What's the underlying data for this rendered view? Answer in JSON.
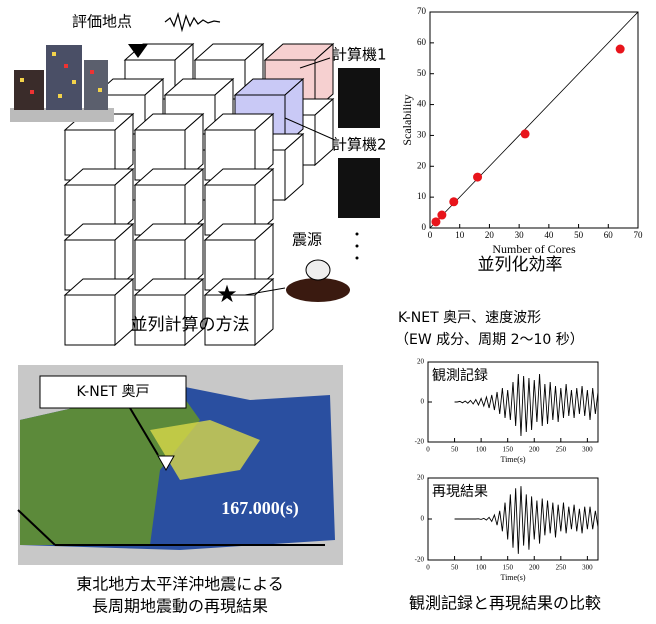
{
  "diagram": {
    "site": "評価地点",
    "computer1": "計算機1",
    "computer2": "計算機2",
    "source": "震源",
    "caption": "並列計算の方法"
  },
  "map": {
    "station": "K-NET 奥戸",
    "time": "167.000(s)",
    "caption": [
      "東北地方太平洋沖地震による",
      "長周期地震動の再現結果"
    ]
  },
  "comparison_caption": "観測記録と再現結果の比較",
  "chart_data": [
    {
      "type": "scatter",
      "title": "並列化効率",
      "xlabel": "Number of Cores",
      "ylabel": "Scalability",
      "x": [
        2,
        4,
        8,
        16,
        32,
        64
      ],
      "values": [
        2,
        4.2,
        8.5,
        16.5,
        30.5,
        58
      ],
      "color": "#e8141b",
      "xlim": [
        0,
        70
      ],
      "ylim": [
        0,
        70
      ],
      "xticks": [
        0,
        10,
        20,
        30,
        40,
        50,
        60,
        70
      ],
      "yticks": [
        0,
        10,
        20,
        30,
        40,
        50,
        60,
        70
      ],
      "reference_line": true
    },
    {
      "type": "line",
      "title": "K-NET 奥戸、速度波形",
      "subtitle": "（EW 成分、周期 2〜10 秒）",
      "annotation": "観測記録",
      "xlabel": "Time(s)",
      "x": [
        50,
        55,
        60,
        65,
        70,
        75,
        80,
        85,
        90,
        95,
        100,
        105,
        110,
        115,
        120,
        125,
        130,
        135,
        140,
        145,
        150,
        155,
        160,
        165,
        170,
        175,
        180,
        185,
        190,
        195,
        200,
        205,
        210,
        215,
        220,
        225,
        230,
        235,
        240,
        245,
        250,
        255,
        260,
        265,
        270,
        275,
        280,
        285,
        290,
        295,
        300,
        305,
        310,
        315,
        320
      ],
      "values": [
        0,
        0,
        0.3,
        -0.4,
        0.5,
        -0.6,
        0.8,
        -1,
        1.2,
        -1.5,
        1.8,
        -2,
        2.5,
        -3,
        3.5,
        -4,
        5,
        -6,
        7,
        -8,
        6,
        -9,
        10,
        -12,
        14,
        -17,
        13,
        -15,
        12,
        -14,
        11,
        -10,
        14,
        -12,
        9,
        -11,
        10,
        -9,
        8,
        -10,
        7,
        -8,
        9,
        -7,
        6,
        -8,
        7,
        -6,
        8,
        -7,
        6,
        -9,
        7,
        -6,
        5
      ],
      "color": "#000000",
      "xlim": [
        0,
        320
      ],
      "ylim": [
        -20,
        20
      ],
      "xticks": [
        0,
        50,
        100,
        150,
        200,
        250,
        300
      ],
      "yticks": [
        -20,
        0,
        20
      ]
    },
    {
      "type": "line",
      "annotation": "再現結果",
      "xlabel": "Time(s)",
      "x": [
        50,
        55,
        60,
        65,
        70,
        75,
        80,
        85,
        90,
        95,
        100,
        105,
        110,
        115,
        120,
        125,
        130,
        135,
        140,
        145,
        150,
        155,
        160,
        165,
        170,
        175,
        180,
        185,
        190,
        195,
        200,
        205,
        210,
        215,
        220,
        225,
        230,
        235,
        240,
        245,
        250,
        255,
        260,
        265,
        270,
        275,
        280,
        285,
        290,
        295,
        300,
        305,
        310,
        315,
        320
      ],
      "values": [
        0,
        0,
        0,
        0,
        0,
        0,
        0,
        0,
        0,
        0.1,
        -0.2,
        0.3,
        -0.5,
        0.8,
        -1.2,
        2,
        -3,
        4,
        -6,
        8,
        -10,
        12,
        -14,
        15,
        -17,
        16,
        -13,
        12,
        -15,
        11,
        -10,
        9,
        -12,
        10,
        -8,
        9,
        -7,
        8,
        -9,
        7,
        -6,
        8,
        -7,
        6,
        -5,
        7,
        -6,
        5,
        -7,
        6,
        -5,
        6,
        -5,
        4,
        -4
      ],
      "color": "#000000",
      "xlim": [
        0,
        320
      ],
      "ylim": [
        -20,
        20
      ],
      "xticks": [
        0,
        50,
        100,
        150,
        200,
        250,
        300
      ],
      "yticks": [
        -20,
        0,
        20
      ]
    }
  ]
}
